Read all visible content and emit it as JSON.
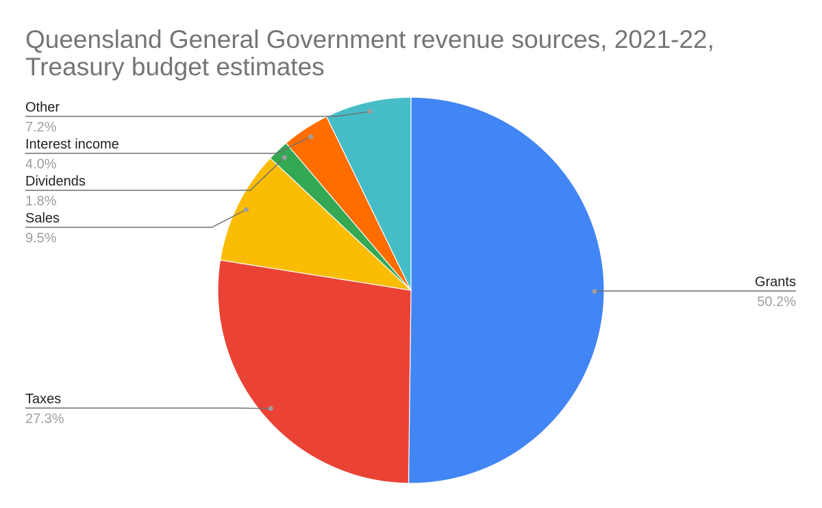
{
  "chart_data": {
    "type": "pie",
    "title": "Queensland General Government revenue sources, 2021-22, Treasury budget estimates",
    "slices": [
      {
        "label": "Grants",
        "value": 50.2,
        "value_label": "50.2%",
        "color": "#4285f4"
      },
      {
        "label": "Taxes",
        "value": 27.3,
        "value_label": "27.3%",
        "color": "#ea4335"
      },
      {
        "label": "Sales",
        "value": 9.5,
        "value_label": "9.5%",
        "color": "#fbbc04"
      },
      {
        "label": "Dividends",
        "value": 1.8,
        "value_label": "1.8%",
        "color": "#34a853"
      },
      {
        "label": "Interest income",
        "value": 4.0,
        "value_label": "4.0%",
        "color": "#ff6d01"
      },
      {
        "label": "Other",
        "value": 7.2,
        "value_label": "7.2%",
        "color": "#46bdc6"
      }
    ],
    "start_angle": "12 o'clock",
    "direction": "clockwise",
    "legend": "none",
    "labels_outside": true
  }
}
